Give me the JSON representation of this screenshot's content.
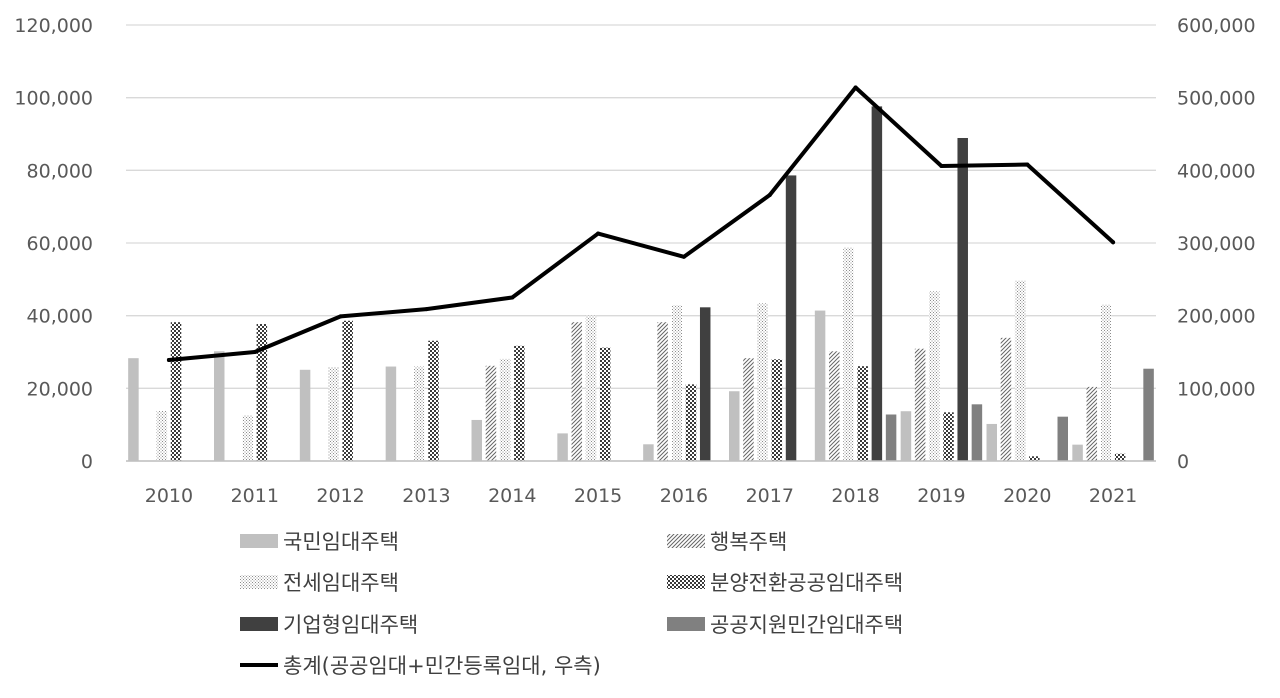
{
  "chart_data": {
    "type": "bar",
    "categories": [
      "2010",
      "2011",
      "2012",
      "2013",
      "2014",
      "2015",
      "2016",
      "2017",
      "2018",
      "2019",
      "2020",
      "2021"
    ],
    "series": [
      {
        "name": "국민임대주택",
        "kind": "bar",
        "axis": "left",
        "pattern": "solid-light",
        "values": [
          28300,
          30200,
          25100,
          26000,
          11300,
          7600,
          4600,
          19200,
          41400,
          13700,
          10200,
          4500
        ]
      },
      {
        "name": "행복주택",
        "kind": "bar",
        "axis": "left",
        "pattern": "diagonal",
        "values": [
          0,
          0,
          0,
          0,
          26200,
          38200,
          38200,
          28300,
          30200,
          30900,
          33900,
          20400
        ]
      },
      {
        "name": "전세임대주택",
        "kind": "bar",
        "axis": "left",
        "pattern": "dots",
        "values": [
          13800,
          12500,
          25800,
          26000,
          28100,
          40000,
          42900,
          43400,
          58700,
          46700,
          49600,
          43000
        ]
      },
      {
        "name": "분양전환공공임대주택",
        "kind": "bar",
        "axis": "left",
        "pattern": "checker",
        "values": [
          38200,
          37700,
          38600,
          33100,
          31700,
          31200,
          21100,
          28000,
          26100,
          13400,
          1300,
          2000
        ]
      },
      {
        "name": "기업형임대주택",
        "kind": "bar",
        "axis": "left",
        "pattern": "solid-dark",
        "values": [
          0,
          0,
          0,
          0,
          0,
          0,
          42300,
          78600,
          97600,
          88900,
          0,
          0
        ]
      },
      {
        "name": "공공지원민간임대주택",
        "kind": "bar",
        "axis": "left",
        "pattern": "solid-mid",
        "values": [
          0,
          0,
          0,
          0,
          0,
          0,
          0,
          0,
          12800,
          15600,
          12200,
          25400
        ]
      },
      {
        "name": "총계(공공임대+민간등록임대, 우측)",
        "kind": "line",
        "axis": "right",
        "values": [
          139000,
          150000,
          199000,
          209000,
          225000,
          313000,
          281000,
          366000,
          514000,
          406000,
          408000,
          301000
        ]
      }
    ],
    "ylim_left": [
      0,
      120000
    ],
    "ylim_right": [
      0,
      600000
    ],
    "yticks_left": [
      "0",
      "20,000",
      "40,000",
      "60,000",
      "80,000",
      "100,000",
      "120,000"
    ],
    "yticks_right": [
      "0",
      "100,000",
      "200,000",
      "300,000",
      "400,000",
      "500,000",
      "600,000"
    ],
    "grid": true,
    "legend_position": "bottom",
    "colors": {
      "solid-light": "#c0c0c0",
      "solid-mid": "#808080",
      "solid-dark": "#404040",
      "pattern-ink": "#555555",
      "line": "#000000",
      "grid": "#d9d9d9",
      "tick": "#595959"
    }
  }
}
